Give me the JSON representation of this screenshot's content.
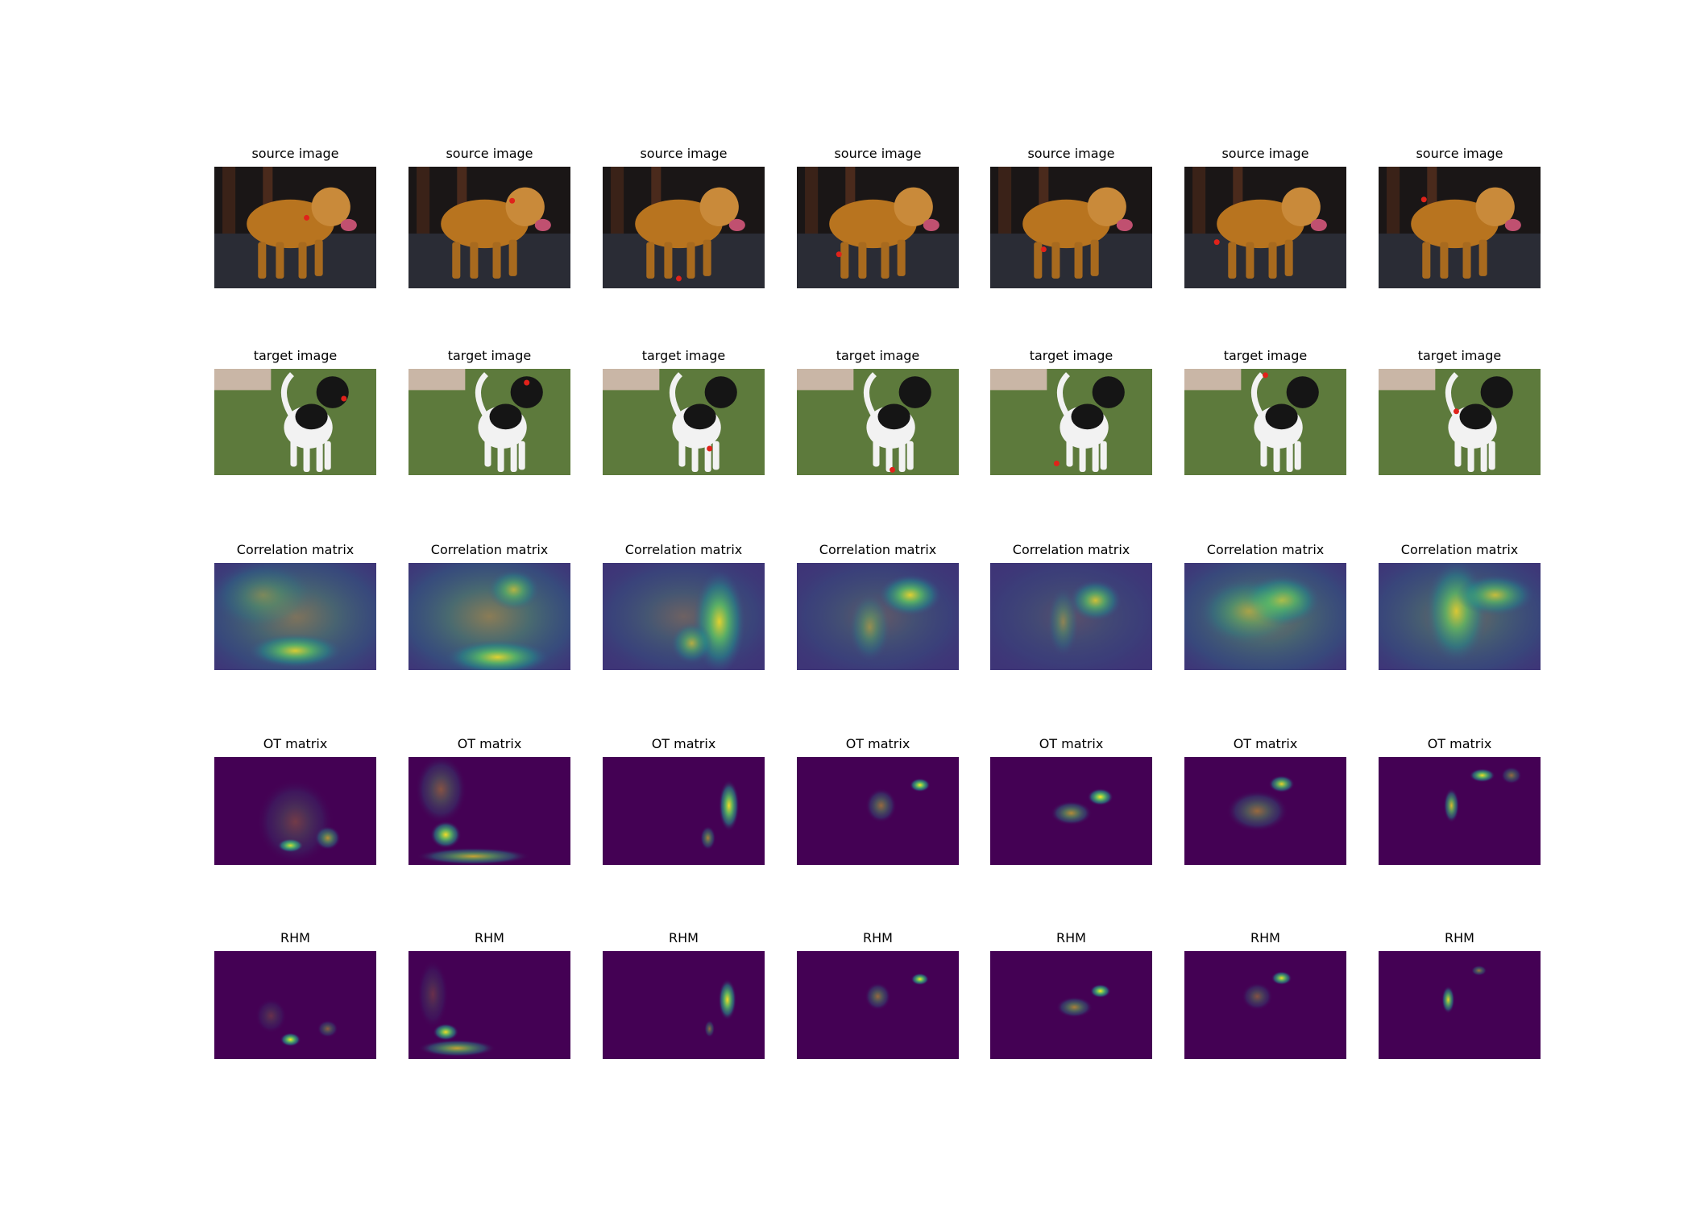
{
  "rows": [
    {
      "kind": "source",
      "title": "source image"
    },
    {
      "kind": "target",
      "title": "target image"
    },
    {
      "kind": "heatmap",
      "title": "Correlation matrix"
    },
    {
      "kind": "heatmap",
      "title": "OT matrix"
    },
    {
      "kind": "heatmap",
      "title": "RHM"
    }
  ],
  "columns": 7,
  "colors": {
    "keypoint": "#e0221a",
    "viridis_low": "#440154",
    "viridis_mid": "#21918c",
    "viridis_high": "#fde725",
    "source_background": "#24262e",
    "source_dog": "#b8741f",
    "target_grass": "#5d7a3c",
    "target_dog_black": "#151515",
    "target_dog_white": "#f2f2f2"
  },
  "panels": {
    "source": [
      {},
      {},
      {},
      {},
      {},
      {},
      {}
    ],
    "target": [
      {},
      {},
      {},
      {},
      {},
      {},
      {}
    ]
  }
}
